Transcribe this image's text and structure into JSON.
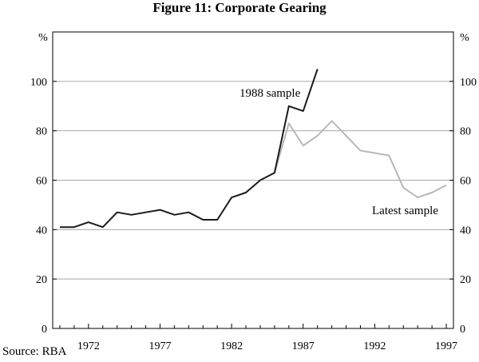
{
  "source": "Source: RBA",
  "chart_data": {
    "type": "line",
    "title": "Figure 11: Corporate Gearing",
    "ylabel_left": "%",
    "ylabel_right": "%",
    "ylim": [
      0,
      120
    ],
    "yticks": [
      0,
      20,
      40,
      60,
      80,
      100
    ],
    "xlim": [
      1969.5,
      1997.5
    ],
    "xticks": [
      1972,
      1977,
      1982,
      1987,
      1992,
      1997
    ],
    "grid": true,
    "colors": {
      "sample1988": "#1a1a1a",
      "latest": "#b8b8b8",
      "axis": "#000000",
      "grid": "#a8a8a8"
    },
    "series": [
      {
        "name": "Latest sample",
        "x": [
          1985,
          1986,
          1987,
          1988,
          1989,
          1990,
          1991,
          1992,
          1993,
          1994,
          1995,
          1996,
          1997
        ],
        "values": [
          63,
          83,
          74,
          78,
          84,
          78,
          72,
          71,
          70,
          57,
          53,
          55,
          58
        ]
      },
      {
        "name": "1988 sample",
        "x": [
          1970,
          1971,
          1972,
          1973,
          1974,
          1975,
          1976,
          1977,
          1978,
          1979,
          1980,
          1981,
          1982,
          1983,
          1984,
          1985,
          1986,
          1987,
          1988
        ],
        "values": [
          41,
          41,
          43,
          41,
          47,
          46,
          47,
          48,
          46,
          47,
          44,
          44,
          53,
          55,
          60,
          63,
          90,
          88,
          105
        ]
      }
    ]
  }
}
